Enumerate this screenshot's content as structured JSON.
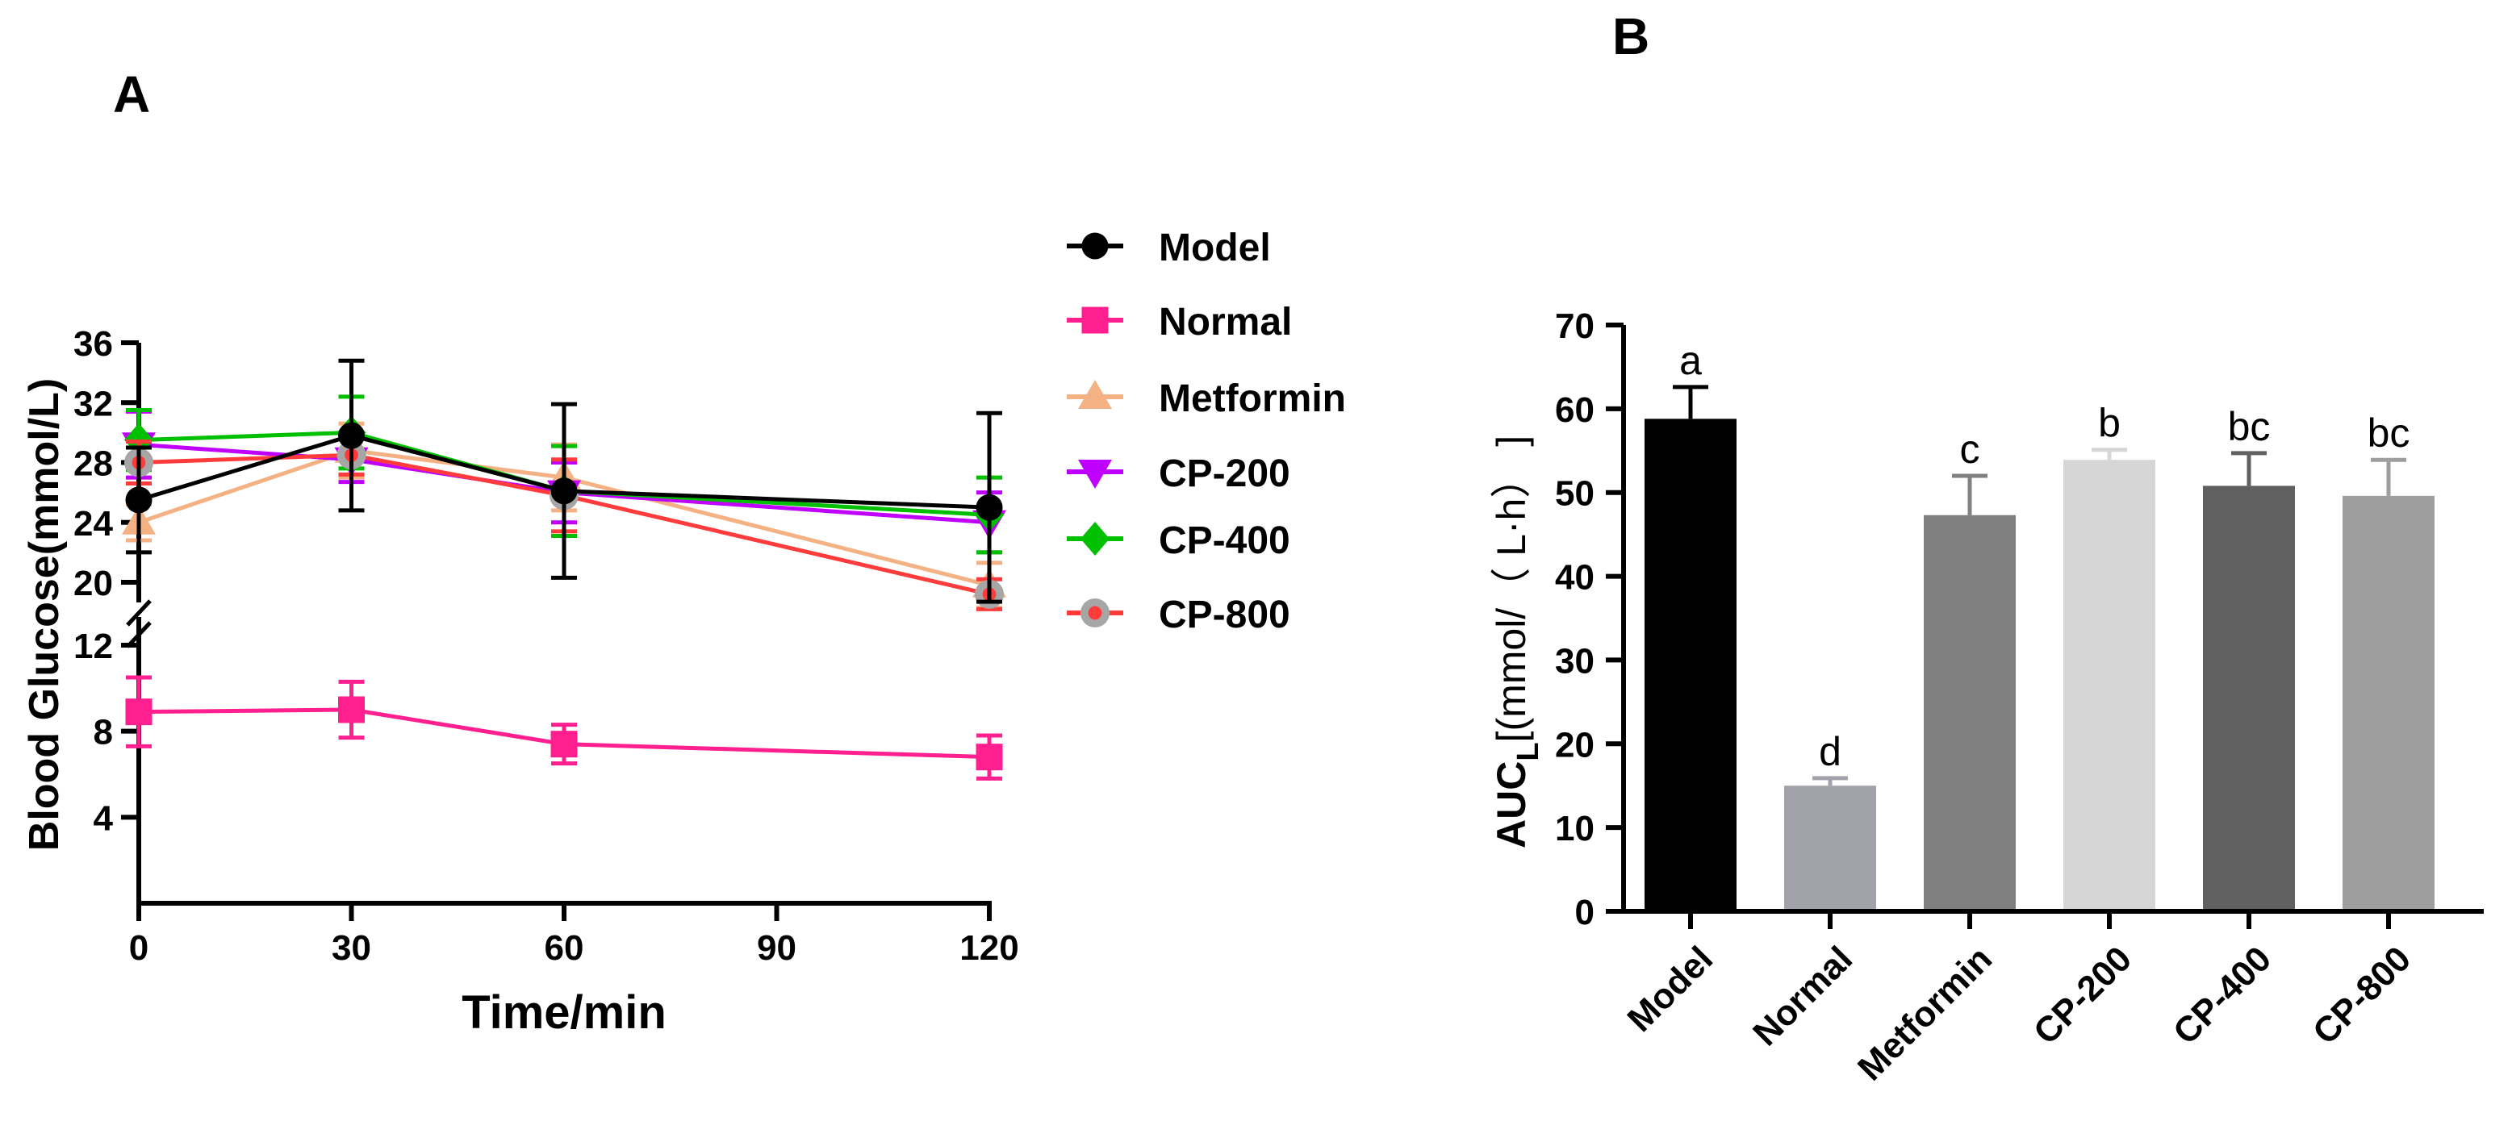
{
  "panels": {
    "a_label": "A",
    "b_label": "B"
  },
  "chart_data": [
    {
      "type": "line",
      "xlabel": "Time/min",
      "ylabel": "Blood Glucose(mmol/L)",
      "x": [
        0,
        30,
        60,
        120
      ],
      "x_ticks": [
        "0",
        "30",
        "60",
        "90",
        "120"
      ],
      "y_ticks_lower": [
        "4",
        "8",
        "12"
      ],
      "y_ticks_upper": [
        "20",
        "24",
        "28",
        "32",
        "36"
      ],
      "axis_break": {
        "from": 12,
        "to": 20
      },
      "ylim_lower": [
        0,
        12
      ],
      "ylim_upper": [
        20,
        36
      ],
      "xlim": [
        0,
        120
      ],
      "legend_position": "right",
      "series": [
        {
          "name": "Model",
          "color": "#000000",
          "marker": "circle",
          "values": [
            25.5,
            29.8,
            26.1,
            25.0
          ],
          "errors": [
            3.5,
            5.0,
            5.8,
            6.3
          ]
        },
        {
          "name": "Normal",
          "color": "#ff1f8e",
          "marker": "square",
          "values": [
            8.9,
            9.0,
            7.4,
            6.8
          ],
          "errors": [
            1.6,
            1.3,
            0.9,
            1.0
          ]
        },
        {
          "name": "Metformin",
          "color": "#f4b183",
          "marker": "triangle-up",
          "values": [
            24.0,
            28.8,
            27.0,
            19.8
          ],
          "errors": [
            1.2,
            1.8,
            2.2,
            1.5
          ]
        },
        {
          "name": "CP-200",
          "color": "#c000ff",
          "marker": "triangle-down",
          "values": [
            29.2,
            28.2,
            26.0,
            24.0
          ],
          "errors": [
            2.2,
            1.5,
            2.0,
            2.0
          ]
        },
        {
          "name": "CP-400",
          "color": "#00c000",
          "marker": "diamond",
          "values": [
            29.5,
            30.0,
            26.1,
            24.5
          ],
          "errors": [
            2.0,
            2.4,
            3.0,
            2.5
          ]
        },
        {
          "name": "CP-800",
          "color": "#ff3b3b",
          "marker": "circle-gray",
          "values": [
            28.0,
            28.5,
            25.8,
            19.2
          ],
          "errors": [
            1.4,
            1.3,
            2.4,
            1.0
          ]
        }
      ]
    },
    {
      "type": "bar",
      "ylabel": "AUC[(mmol/（ L·h）]",
      "ylabel_parts": {
        "main": "AUC",
        "sub": "L",
        "rest": "[(mmol/（ L·h） ]"
      },
      "categories": [
        "Model",
        "Normal",
        "Metformin",
        "CP-200",
        "CP-400",
        "CP-800"
      ],
      "values": [
        58.8,
        15.0,
        47.3,
        53.9,
        50.8,
        49.6
      ],
      "errors": [
        3.8,
        0.9,
        4.7,
        1.2,
        3.9,
        4.3
      ],
      "sig_labels": [
        "a",
        "d",
        "c",
        "b",
        "bc",
        "bc"
      ],
      "colors": [
        "#000000",
        "#a2a2aa",
        "#808080",
        "#d6d6d6",
        "#606060",
        "#9e9e9e"
      ],
      "ylim": [
        0,
        70
      ],
      "y_ticks": [
        "0",
        "10",
        "20",
        "30",
        "40",
        "50",
        "60",
        "70"
      ]
    }
  ]
}
